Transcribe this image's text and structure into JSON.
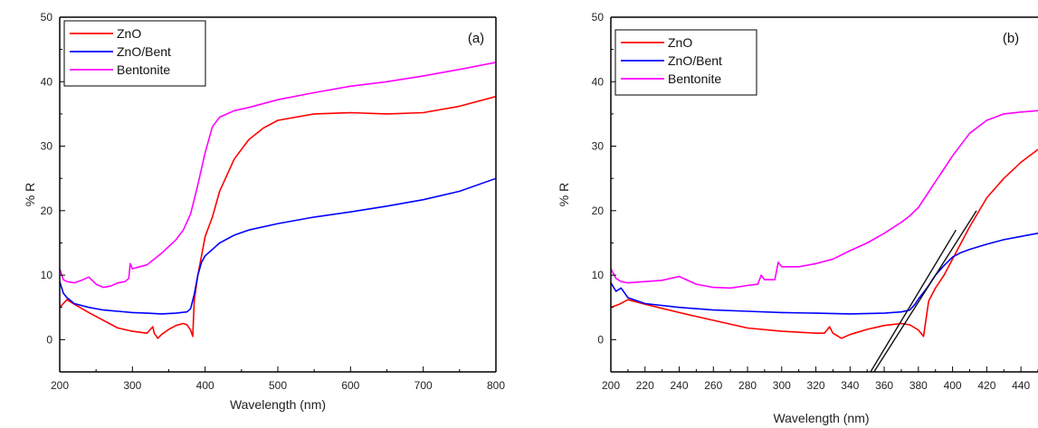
{
  "chart_data": [
    {
      "type": "line",
      "panel_label": "(a)",
      "xlabel": "Wavelength (nm)",
      "ylabel": "% R",
      "xlim": [
        200,
        800
      ],
      "ylim": [
        -5,
        50
      ],
      "xticks": [
        200,
        300,
        400,
        500,
        600,
        700,
        800
      ],
      "yticks": [
        0,
        10,
        20,
        30,
        40,
        50
      ],
      "legend_position": "top-left",
      "series": [
        {
          "name": "ZnO",
          "color": "#ff0000",
          "x": [
            200,
            210,
            220,
            240,
            260,
            280,
            300,
            320,
            328,
            330,
            335,
            340,
            350,
            360,
            370,
            375,
            380,
            383,
            385,
            390,
            395,
            400,
            410,
            420,
            440,
            460,
            480,
            500,
            550,
            600,
            650,
            700,
            750,
            800
          ],
          "y": [
            5,
            6.2,
            5.5,
            4.2,
            3,
            1.8,
            1.3,
            1,
            2,
            1,
            0.2,
            0.8,
            1.6,
            2.2,
            2.5,
            2.3,
            1.5,
            0.5,
            6,
            10,
            13,
            16,
            19,
            23,
            28,
            31,
            32.8,
            34,
            35,
            35.2,
            35,
            35.2,
            36.2,
            37.7
          ]
        },
        {
          "name": "ZnO/Bent",
          "color": "#0000ff",
          "x": [
            200,
            205,
            210,
            220,
            240,
            260,
            280,
            300,
            320,
            340,
            360,
            375,
            380,
            385,
            390,
            395,
            400,
            410,
            420,
            440,
            460,
            500,
            550,
            600,
            650,
            700,
            750,
            800
          ],
          "y": [
            9,
            7.2,
            6.5,
            5.6,
            5,
            4.6,
            4.4,
            4.2,
            4.1,
            4,
            4.1,
            4.3,
            4.8,
            7,
            10,
            12,
            13,
            14,
            15,
            16.2,
            17,
            18,
            19,
            19.8,
            20.7,
            21.7,
            23,
            25
          ]
        },
        {
          "name": "Bentonite",
          "color": "#ff00ff",
          "x": [
            200,
            205,
            210,
            220,
            230,
            240,
            250,
            260,
            270,
            280,
            290,
            295,
            297,
            300,
            310,
            320,
            340,
            360,
            370,
            380,
            390,
            400,
            410,
            420,
            440,
            460,
            500,
            550,
            600,
            650,
            700,
            750,
            800
          ],
          "y": [
            11,
            9.3,
            9,
            8.8,
            9.2,
            9.7,
            8.6,
            8.1,
            8.3,
            8.8,
            9,
            9.5,
            11.8,
            11,
            11.3,
            11.6,
            13.4,
            15.5,
            17,
            19.5,
            24,
            29,
            33,
            34.5,
            35.5,
            36,
            37.2,
            38.3,
            39.3,
            40,
            40.9,
            41.9,
            43
          ]
        }
      ]
    },
    {
      "type": "line",
      "panel_label": "(b)",
      "xlabel": "Wavelength (nm)",
      "ylabel": "% R",
      "xlim": [
        200,
        450
      ],
      "ylim": [
        -5,
        50
      ],
      "xticks": [
        200,
        220,
        240,
        260,
        280,
        300,
        320,
        340,
        360,
        380,
        400,
        420,
        440
      ],
      "yticks": [
        0,
        10,
        20,
        30,
        40,
        50
      ],
      "legend_position": "top-left",
      "series": [
        {
          "name": "ZnO",
          "color": "#ff0000",
          "x": [
            200,
            205,
            210,
            220,
            240,
            260,
            280,
            300,
            320,
            325,
            328,
            330,
            335,
            340,
            350,
            360,
            370,
            375,
            380,
            383,
            386,
            390,
            395,
            400,
            405,
            410,
            420,
            430,
            440,
            450
          ],
          "y": [
            5,
            5.5,
            6.2,
            5.5,
            4.2,
            3,
            1.8,
            1.3,
            1,
            1,
            2,
            1,
            0.2,
            0.8,
            1.6,
            2.2,
            2.5,
            2.3,
            1.5,
            0.5,
            6,
            8,
            10,
            12.5,
            15,
            17.5,
            22,
            25,
            27.5,
            29.5
          ]
        },
        {
          "name": "ZnO/Bent",
          "color": "#0000ff",
          "x": [
            200,
            203,
            206,
            210,
            220,
            240,
            260,
            280,
            300,
            320,
            340,
            360,
            370,
            375,
            378,
            380,
            385,
            390,
            395,
            400,
            405,
            410,
            420,
            430,
            440,
            450
          ],
          "y": [
            8.8,
            7.5,
            8,
            6.5,
            5.6,
            5,
            4.6,
            4.4,
            4.2,
            4.1,
            4,
            4.1,
            4.3,
            4.6,
            5.5,
            6.3,
            8,
            10,
            11.5,
            12.8,
            13.5,
            14,
            14.8,
            15.5,
            16,
            16.5
          ]
        },
        {
          "name": "Bentonite",
          "color": "#ff00ff",
          "x": [
            200,
            203,
            206,
            210,
            220,
            230,
            240,
            250,
            260,
            270,
            280,
            286,
            288,
            290,
            296,
            298,
            300,
            310,
            320,
            330,
            340,
            350,
            360,
            370,
            375,
            380,
            385,
            390,
            395,
            400,
            410,
            420,
            430,
            440,
            450
          ],
          "y": [
            11,
            9.5,
            9,
            8.8,
            9,
            9.2,
            9.8,
            8.6,
            8.1,
            8,
            8.4,
            8.6,
            10,
            9.3,
            9.3,
            12,
            11.3,
            11.3,
            11.8,
            12.5,
            13.8,
            15,
            16.5,
            18.2,
            19.2,
            20.5,
            22.5,
            24.5,
            26.5,
            28.5,
            32,
            34,
            35,
            35.3,
            35.5
          ]
        }
      ],
      "fit_lines": [
        {
          "color": "#111111",
          "x": [
            352,
            402
          ],
          "y": [
            -5,
            17
          ]
        },
        {
          "color": "#111111",
          "x": [
            354,
            414
          ],
          "y": [
            -5,
            20
          ]
        }
      ]
    }
  ]
}
